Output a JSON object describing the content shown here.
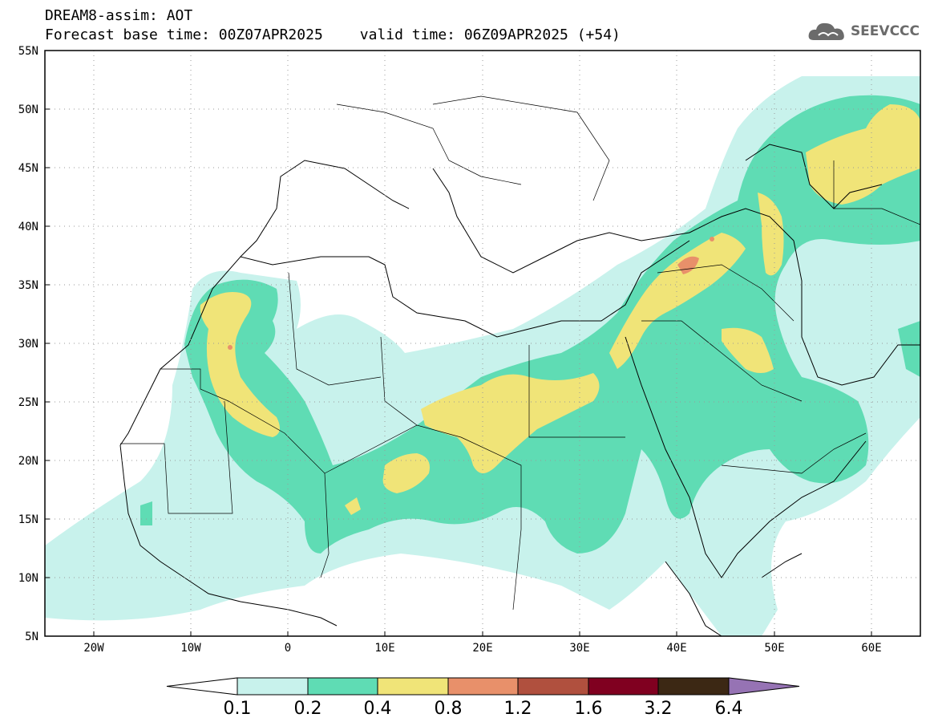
{
  "header": {
    "product": "DREAM8-assim: AOT",
    "base_time": "Forecast base time: 00Z07APR2025",
    "valid_time": "valid time: 06Z09APR2025 (+54)"
  },
  "logo": {
    "text": "SEEVCCC",
    "icon": "cloud-icon"
  },
  "map": {
    "lat_ticks": [
      "55N",
      "50N",
      "45N",
      "40N",
      "35N",
      "30N",
      "25N",
      "20N",
      "15N",
      "10N",
      "5N"
    ],
    "lon_ticks": [
      "20W",
      "10W",
      "0",
      "10E",
      "20E",
      "30E",
      "40E",
      "50E",
      "60E"
    ],
    "colors": {
      "c01": "#c8f2ec",
      "c02": "#5fdcb4",
      "c04": "#f0e478",
      "c08": "#e8906a",
      "c12": "#b0503e",
      "c16": "#800020",
      "c32": "#3c2814",
      "c64": "#9673b4"
    }
  },
  "colorbar": {
    "labels": [
      "0.1",
      "0.2",
      "0.4",
      "0.8",
      "1.2",
      "1.6",
      "3.2",
      "6.4"
    ],
    "colors": [
      "#ffffff",
      "#c8f2ec",
      "#5fdcb4",
      "#f0e478",
      "#e8906a",
      "#b0503e",
      "#800020",
      "#3c2814",
      "#9673b4"
    ]
  }
}
